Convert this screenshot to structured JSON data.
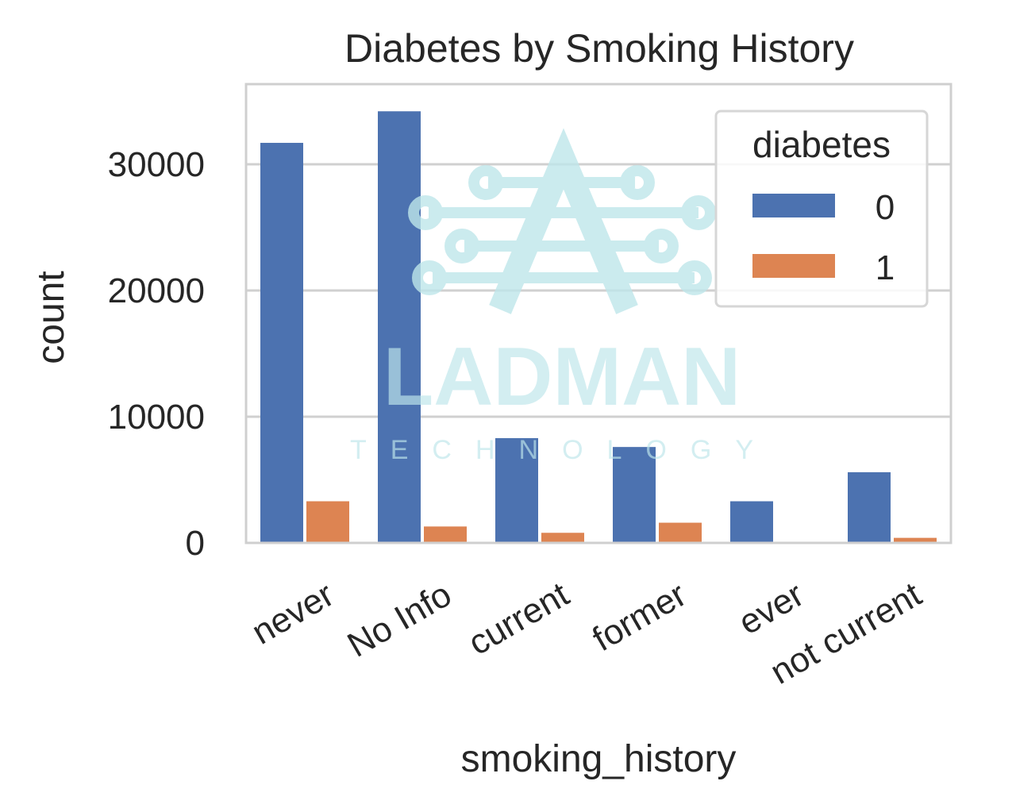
{
  "chart_data": {
    "type": "bar",
    "title": "Diabetes by Smoking History",
    "xlabel": "smoking_history",
    "ylabel": "count",
    "categories": [
      "never",
      "No Info",
      "current",
      "former",
      "ever",
      "not current"
    ],
    "series": [
      {
        "name": "0",
        "color": "#4c72b0",
        "values": [
          31700,
          34200,
          8300,
          7600,
          3300,
          5600
        ]
      },
      {
        "name": "1",
        "color": "#dd8452",
        "values": [
          3300,
          1300,
          800,
          1600,
          0,
          400
        ]
      }
    ],
    "ylim": [
      0,
      36000
    ],
    "yticks": [
      0,
      10000,
      20000,
      30000
    ],
    "grid": true,
    "legend": {
      "title": "diabetes",
      "position": "top-right"
    }
  },
  "watermark": {
    "brand": "LADMAN",
    "sub": "TECHNOLOGY"
  }
}
